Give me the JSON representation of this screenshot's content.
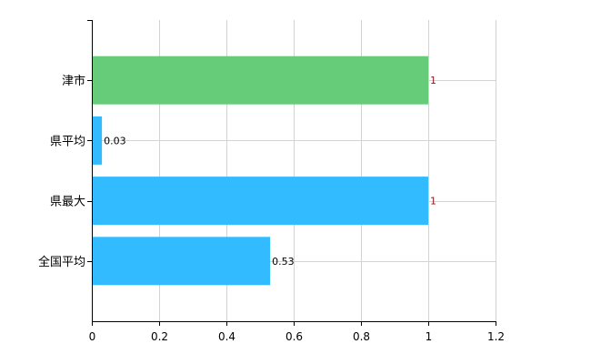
{
  "chart_data": {
    "type": "bar",
    "orientation": "horizontal",
    "categories": [
      "津市",
      "県平均",
      "県最大",
      "全国平均"
    ],
    "values": [
      1,
      0.03,
      1,
      0.53
    ],
    "value_labels": [
      "1",
      "0.03",
      "1",
      "0.53"
    ],
    "bar_colors": [
      "#66cc7a",
      "#33bbff",
      "#33bbff",
      "#33bbff"
    ],
    "label_colors": [
      "#8b1a1a",
      "#000000",
      "#8b1a1a",
      "#000000"
    ],
    "xlim": [
      0,
      1.2
    ],
    "xticks": [
      "0",
      "0.2",
      "0.4",
      "0.6",
      "0.8",
      "1",
      "1.2"
    ],
    "title": "",
    "xlabel": "",
    "ylabel": "",
    "grid": true
  }
}
